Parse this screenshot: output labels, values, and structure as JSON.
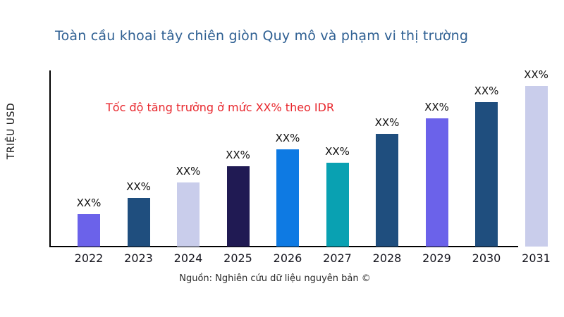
{
  "title": "Toàn cầu khoai tây chiên giòn Quy mô và phạm vi thị trường",
  "annotation": "Tốc độ tăng trưởng ở mức XX% theo IDR",
  "source": "Nguồn: Nghiên cứu dữ liệu nguyên bản ©",
  "colors": {
    "title": "#2f6093",
    "annotation": "#e8262c",
    "axis": "#000000",
    "label_text": "#111111"
  },
  "chart_data": {
    "type": "bar",
    "title": "Toàn cầu khoai tây chiên giòn Quy mô và phạm vi thị trường",
    "xlabel": "",
    "ylabel": "TRIỆU USD",
    "categories": [
      "2022",
      "2023",
      "2024",
      "2025",
      "2026",
      "2027",
      "2028",
      "2029",
      "2030",
      "2031"
    ],
    "bar_labels": [
      "XX%",
      "XX%",
      "XX%",
      "XX%",
      "XX%",
      "XX%",
      "XX%",
      "XX%",
      "XX%",
      "XX%"
    ],
    "values_estimated_relative": [
      46,
      69,
      91,
      114,
      138,
      119,
      160,
      182,
      205,
      228
    ],
    "bar_colors": [
      "#6b62ea",
      "#1f4e7e",
      "#c9cdeb",
      "#201a53",
      "#0e7ae3",
      "#09a1b2",
      "#1f4e7e",
      "#6b62ea",
      "#1f4e7e",
      "#c9cdeb"
    ],
    "grid": false,
    "legend": false,
    "y_tick_labels_visible": false,
    "annotation": "Tốc độ tăng trưởng ở mức XX% theo IDR",
    "source": "Nguồn: Nghiên cứu dữ liệu nguyên bản ©"
  }
}
